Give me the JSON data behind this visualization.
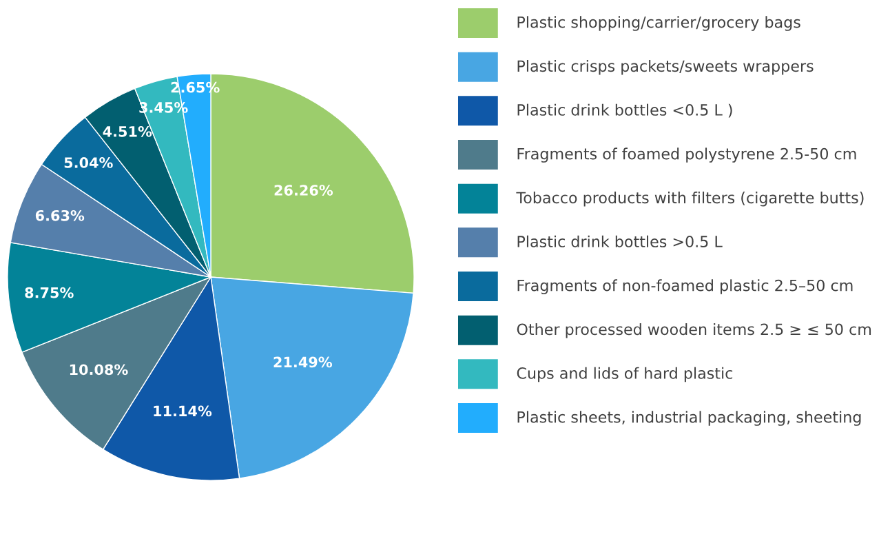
{
  "chart_data": {
    "type": "pie",
    "categories": [
      "Plastic shopping/carrier/grocery bags",
      "Plastic crisps packets/sweets wrappers",
      "Plastic drink bottles <0.5 L )",
      "Fragments of foamed polystyrene 2.5-50 cm",
      "Tobacco products with filters (cigarette butts)",
      "Plastic drink bottles >0.5 L",
      "Fragments of non-foamed plastic 2.5–50 cm",
      "Other processed wooden items 2.5 ≥ ≤ 50 cm",
      "Cups and lids of hard plastic",
      "Plastic sheets, industrial packaging, sheeting"
    ],
    "values": [
      26.26,
      21.49,
      11.14,
      10.08,
      8.75,
      6.63,
      5.04,
      4.51,
      3.45,
      2.65
    ],
    "value_labels": [
      "26.26%",
      "21.49%",
      "11.14%",
      "10.08%",
      "8.75%",
      "6.63%",
      "5.04%",
      "4.51%",
      "3.45%",
      "2.65%"
    ],
    "colors": [
      "#9ccd6c",
      "#48a6e3",
      "#0f58a8",
      "#4f7b8b",
      "#038398",
      "#557fab",
      "#0a6b9d",
      "#025f70",
      "#33b9bf",
      "#22adfd"
    ],
    "legend": "right"
  }
}
